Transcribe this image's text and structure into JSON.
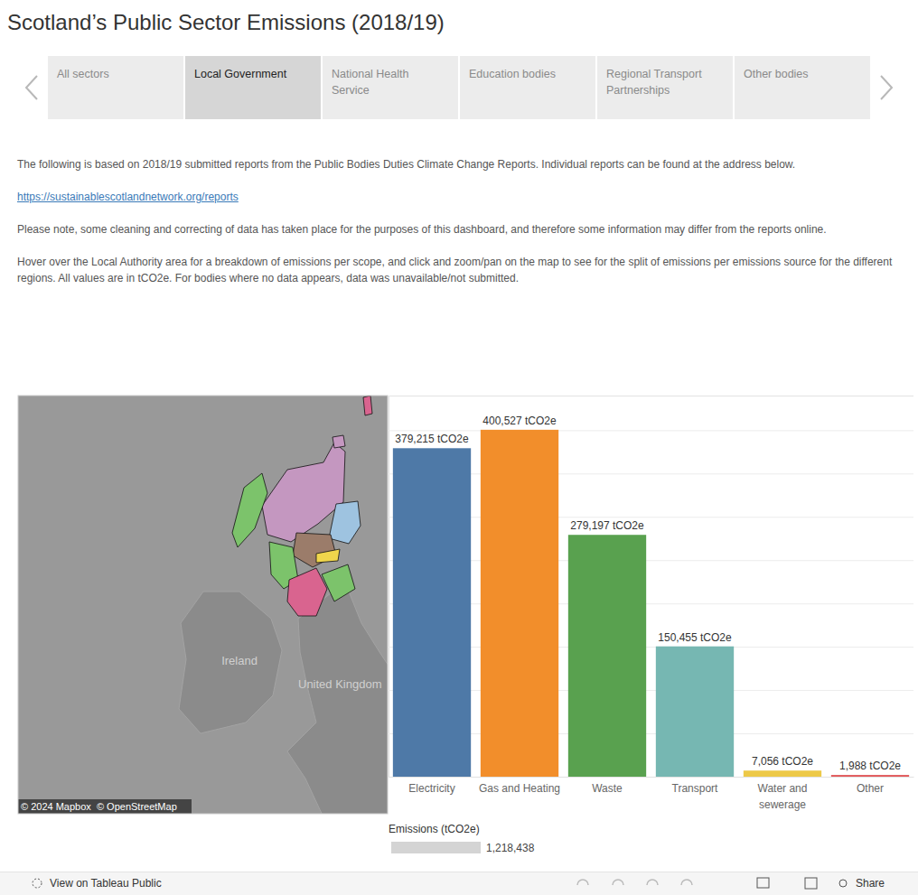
{
  "title": "Scotland’s Public Sector Emissions (2018/19)",
  "tabs": [
    {
      "label": "All sectors"
    },
    {
      "label": "Local Government",
      "selected": true
    },
    {
      "label": "National Health Service"
    },
    {
      "label": "Education bodies"
    },
    {
      "label": "Regional Transport Partnerships"
    },
    {
      "label": "Other bodies"
    }
  ],
  "paragraphs": [
    "The following is based on 2018/19 submitted reports from the Public Bodies Duties Climate Change Reports. Individual reports can be found at the address below.",
    "https://sustainablescotlandnetwork.org/reports",
    "Please note, some cleaning and correcting of data has taken place for the purposes of this dashboard, and therefore some information may differ from the reports online.",
    "Hover over the Local Authority area for a breakdown of emissions per scope, and click and zoom/pan on the map to see for the split of emissions per emissions source for the different regions. All values are in tCO2e. For bodies where no data appears, data was unavailable/not submitted."
  ],
  "map": {
    "labels": [
      "Ireland",
      "United Kingdom"
    ],
    "attribution": "© 2024 Mapbox  © OpenStreetMap"
  },
  "chart_data": {
    "type": "bar",
    "categories": [
      "Electricity",
      "Gas and Heating",
      "Waste",
      "Transport",
      "Water and sewerage",
      "Other"
    ],
    "values": [
      379215,
      400527,
      279197,
      150455,
      7056,
      1988
    ],
    "value_labels": [
      "379,215 tCO2e",
      "400,527 tCO2e",
      "279,197 tCO2e",
      "150,455 tCO2e",
      "7,056 tCO2e",
      "1,988 tCO2e"
    ],
    "colors": [
      "#4e79a7",
      "#f28e2b",
      "#59a14f",
      "#76b7b2",
      "#edc948",
      "#e15759"
    ],
    "ylim": [
      0,
      440000
    ],
    "yticks": [
      0,
      50000,
      100000,
      150000,
      200000,
      250000,
      300000,
      350000,
      400000
    ],
    "grid": true,
    "data_labels": true,
    "tick_labels": "x"
  },
  "total_legend": {
    "title": "Emissions (tCO2e)",
    "value": 1218438,
    "label": "1,218,438"
  },
  "footer": {
    "view": "View on Tableau Public",
    "share": "Share"
  }
}
